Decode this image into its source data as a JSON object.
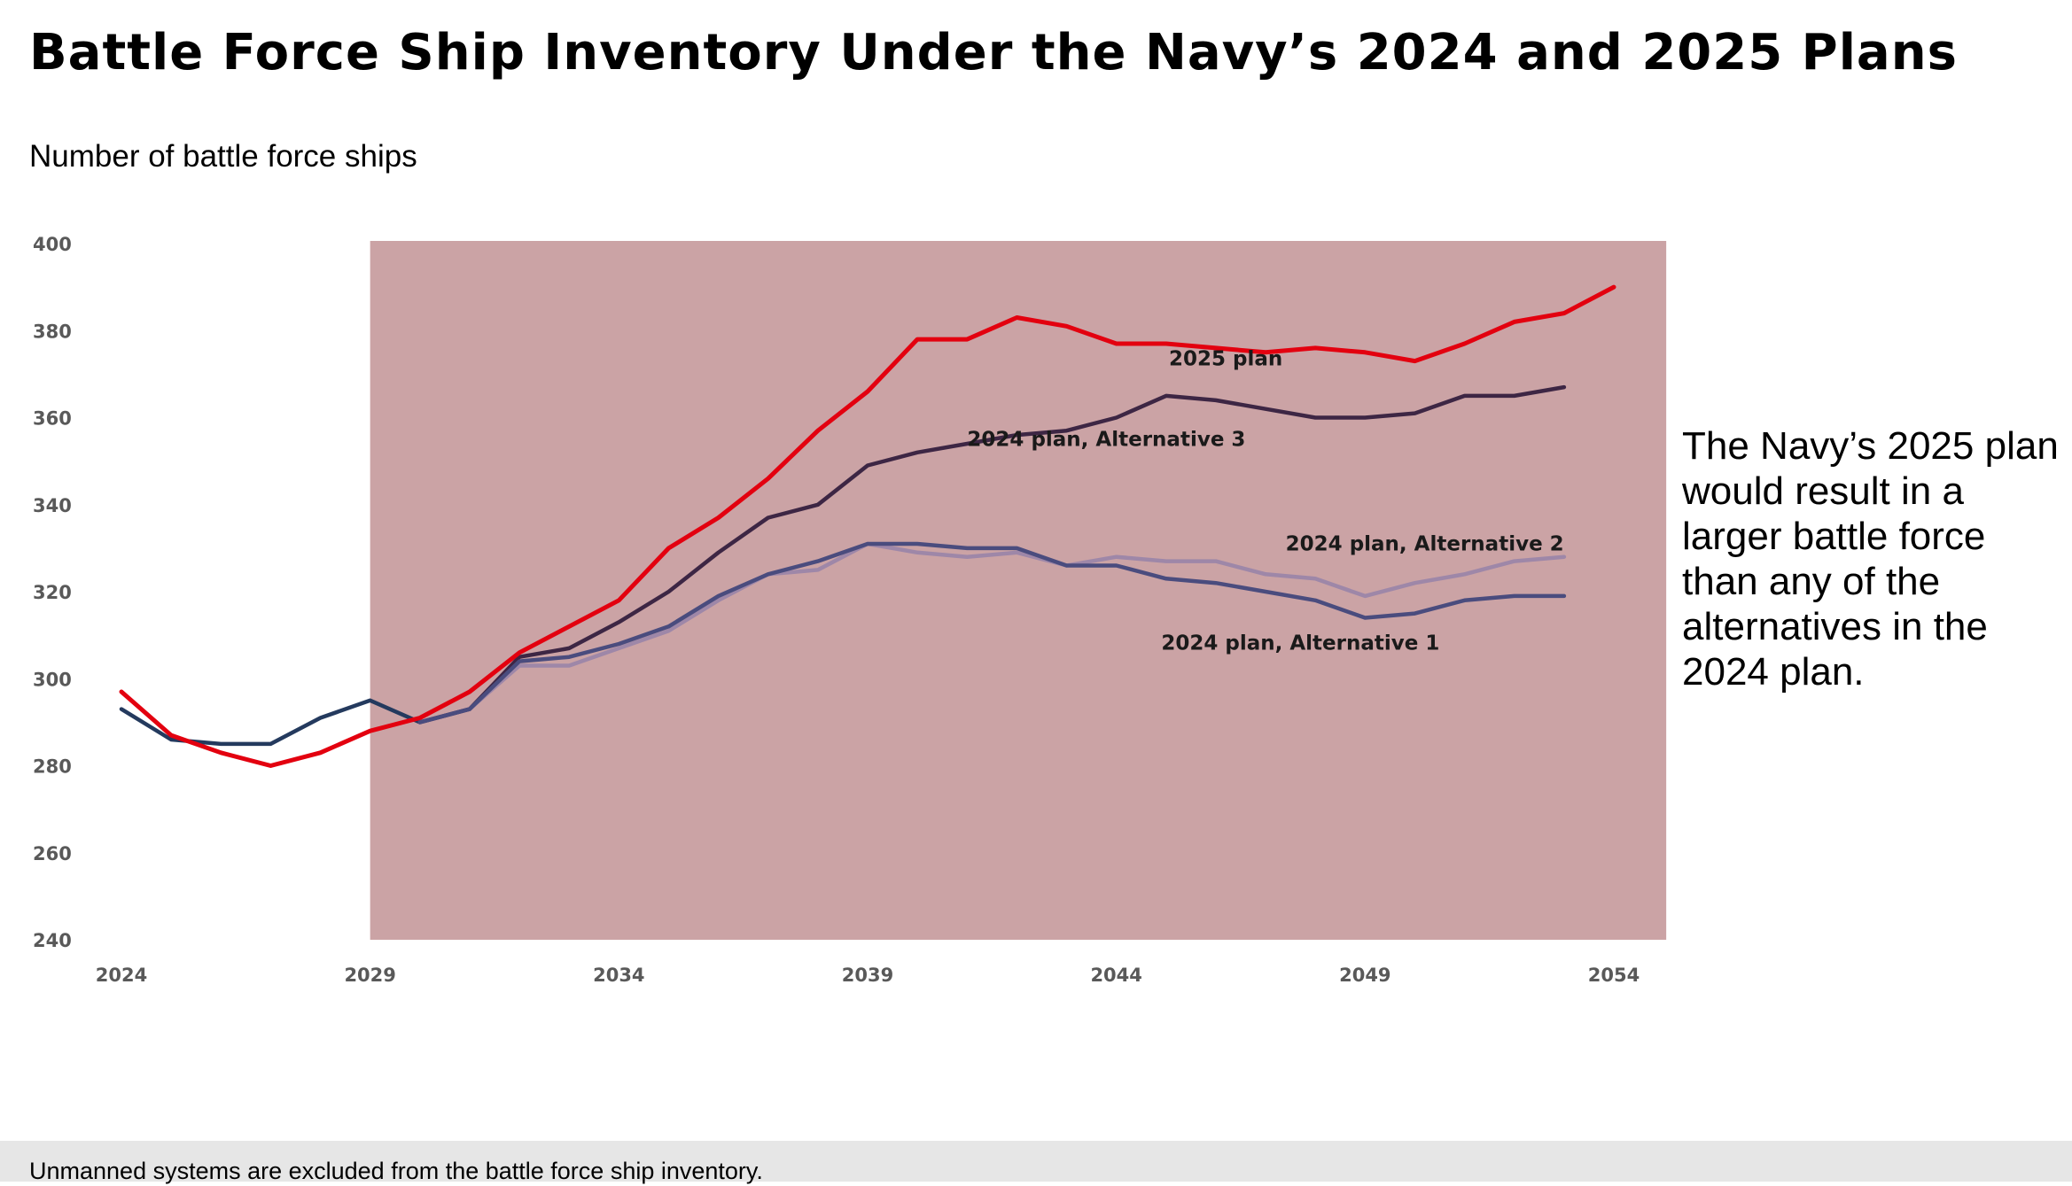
{
  "title": "Battle Force Ship Inventory Under the Navy’s 2024 and 2025 Plans",
  "subtitle": "Number of battle force ships",
  "note": "The Navy’s 2025 plan would result in a larger battle force than any of the alternatives in the 2024 plan.",
  "footer": "Unmanned systems are excluded from the battle force ship inventory.",
  "colors": {
    "shade": "#cba3a5",
    "plan_2025": "#e3000f",
    "alt3": "#3d2644",
    "alt2": "#9e87a8",
    "alt1": "#4a4c7e",
    "early": "#243a5e"
  },
  "chart_data": {
    "type": "line",
    "xlabel": "",
    "ylabel": "Number of battle force ships",
    "xlim": [
      2024,
      2054
    ],
    "ylim": [
      240,
      400
    ],
    "x_ticks": [
      2024,
      2029,
      2034,
      2039,
      2044,
      2049,
      2054
    ],
    "y_ticks": [
      240,
      260,
      280,
      300,
      320,
      340,
      360,
      380,
      400
    ],
    "shaded_region": [
      2029,
      2055
    ],
    "grid": false,
    "early_2024_plan_segment": {
      "x": [
        2024,
        2025,
        2026,
        2027,
        2028,
        2029,
        2030
      ],
      "values": [
        293,
        286,
        285,
        285,
        291,
        295,
        290
      ]
    },
    "series": [
      {
        "name": "2025 plan",
        "x": [
          2024,
          2025,
          2026,
          2027,
          2028,
          2029,
          2030,
          2031,
          2032,
          2033,
          2034,
          2035,
          2036,
          2037,
          2038,
          2039,
          2040,
          2041,
          2042,
          2043,
          2044,
          2045,
          2046,
          2047,
          2048,
          2049,
          2050,
          2051,
          2052,
          2053,
          2054
        ],
        "values": [
          297,
          287,
          283,
          280,
          283,
          288,
          291,
          297,
          306,
          312,
          318,
          330,
          337,
          346,
          357,
          366,
          378,
          378,
          383,
          381,
          377,
          377,
          376,
          375,
          376,
          375,
          373,
          377,
          382,
          384,
          390
        ]
      },
      {
        "name": "2024 plan, Alternative 3",
        "x": [
          2030,
          2031,
          2032,
          2033,
          2034,
          2035,
          2036,
          2037,
          2038,
          2039,
          2040,
          2041,
          2042,
          2043,
          2044,
          2045,
          2046,
          2047,
          2048,
          2049,
          2050,
          2051,
          2052,
          2053
        ],
        "values": [
          290,
          293,
          305,
          307,
          313,
          320,
          329,
          337,
          340,
          349,
          352,
          354,
          356,
          357,
          360,
          365,
          364,
          362,
          360,
          360,
          361,
          365,
          365,
          367
        ]
      },
      {
        "name": "2024 plan, Alternative 2",
        "x": [
          2030,
          2031,
          2032,
          2033,
          2034,
          2035,
          2036,
          2037,
          2038,
          2039,
          2040,
          2041,
          2042,
          2043,
          2044,
          2045,
          2046,
          2047,
          2048,
          2049,
          2050,
          2051,
          2052,
          2053
        ],
        "values": [
          290,
          293,
          303,
          303,
          307,
          311,
          318,
          324,
          325,
          331,
          329,
          328,
          329,
          326,
          328,
          327,
          327,
          324,
          323,
          319,
          322,
          324,
          327,
          328
        ]
      },
      {
        "name": "2024 plan, Alternative 1",
        "x": [
          2030,
          2031,
          2032,
          2033,
          2034,
          2035,
          2036,
          2037,
          2038,
          2039,
          2040,
          2041,
          2042,
          2043,
          2044,
          2045,
          2046,
          2047,
          2048,
          2049,
          2050,
          2051,
          2052,
          2053
        ],
        "values": [
          290,
          293,
          304,
          305,
          308,
          312,
          319,
          324,
          327,
          331,
          331,
          330,
          330,
          326,
          326,
          323,
          322,
          320,
          318,
          314,
          315,
          318,
          319,
          319
        ]
      }
    ]
  }
}
